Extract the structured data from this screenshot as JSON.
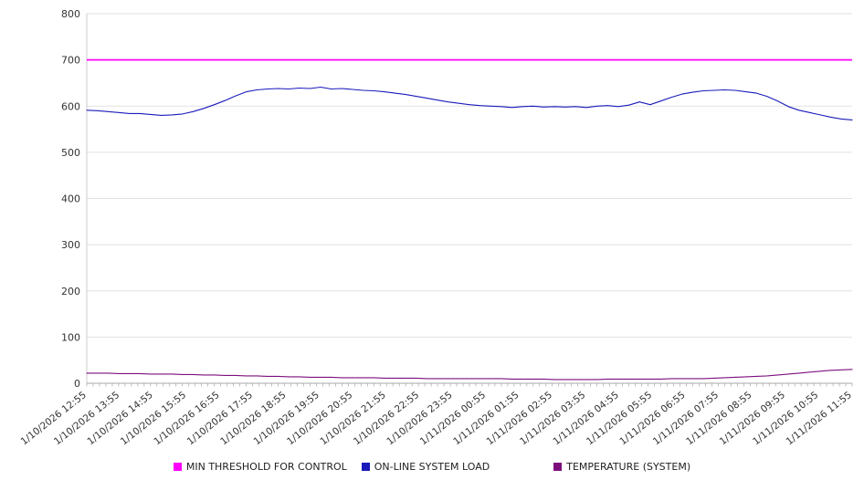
{
  "legend": [
    {
      "label": "MIN THRESHOLD FOR CONTROL",
      "color": "#ff00ff"
    },
    {
      "label": "ON-LINE SYSTEM LOAD",
      "color": "#1a1abb"
    },
    {
      "label": "TEMPERATURE (SYSTEM)",
      "color": "#7d0f7d"
    }
  ],
  "chart_data": {
    "type": "line",
    "title": "",
    "xlabel": "",
    "ylabel": "",
    "ylim": [
      0,
      800
    ],
    "ytick_step": 100,
    "grid": true,
    "legend_position": "bottom",
    "x_labels": [
      "1/10/2026 12:55",
      "1/10/2026 13:55",
      "1/10/2026 14:55",
      "1/10/2026 15:55",
      "1/10/2026 16:55",
      "1/10/2026 17:55",
      "1/10/2026 18:55",
      "1/10/2026 19:55",
      "1/10/2026 20:55",
      "1/10/2026 21:55",
      "1/10/2026 22:55",
      "1/10/2026 23:55",
      "1/11/2026 00:55",
      "1/11/2026 01:55",
      "1/11/2026 02:55",
      "1/11/2026 03:55",
      "1/11/2026 04:55",
      "1/11/2026 05:55",
      "1/11/2026 06:55",
      "1/11/2026 07:55",
      "1/11/2026 08:55",
      "1/11/2026 09:55",
      "1/11/2026 10:55",
      "1/11/2026 11:55"
    ],
    "series": [
      {
        "name": "MIN THRESHOLD FOR CONTROL",
        "color": "#ff00ff",
        "style": "constant",
        "value": 700
      },
      {
        "name": "ON-LINE SYSTEM LOAD",
        "color": "#1a1abb",
        "style": "line",
        "values": [
          591,
          590,
          588,
          586,
          584,
          584,
          582,
          580,
          581,
          583,
          588,
          595,
          603,
          612,
          622,
          631,
          635,
          637,
          638,
          637,
          639,
          638,
          641,
          637,
          638,
          636,
          634,
          633,
          631,
          628,
          625,
          621,
          617,
          613,
          609,
          606,
          603,
          601,
          600,
          599,
          597,
          599,
          600,
          598,
          599,
          598,
          599,
          597,
          600,
          601,
          599,
          602,
          609,
          603,
          611,
          619,
          626,
          630,
          633,
          634,
          635,
          634,
          631,
          628,
          621,
          611,
          599,
          591,
          586,
          581,
          576,
          572,
          570
        ]
      },
      {
        "name": "TEMPERATURE (SYSTEM)",
        "color": "#7d0f7d",
        "style": "line",
        "values": [
          22,
          22,
          22,
          21,
          21,
          21,
          20,
          20,
          20,
          19,
          19,
          18,
          18,
          17,
          17,
          16,
          16,
          15,
          15,
          14,
          14,
          13,
          13,
          13,
          12,
          12,
          12,
          12,
          11,
          11,
          11,
          11,
          10,
          10,
          10,
          10,
          10,
          10,
          10,
          10,
          9,
          9,
          9,
          9,
          8,
          8,
          8,
          8,
          8,
          9,
          9,
          9,
          9,
          9,
          9,
          10,
          10,
          10,
          10,
          11,
          12,
          13,
          14,
          15,
          16,
          18,
          20,
          22,
          24,
          26,
          28,
          29,
          30
        ]
      }
    ]
  }
}
